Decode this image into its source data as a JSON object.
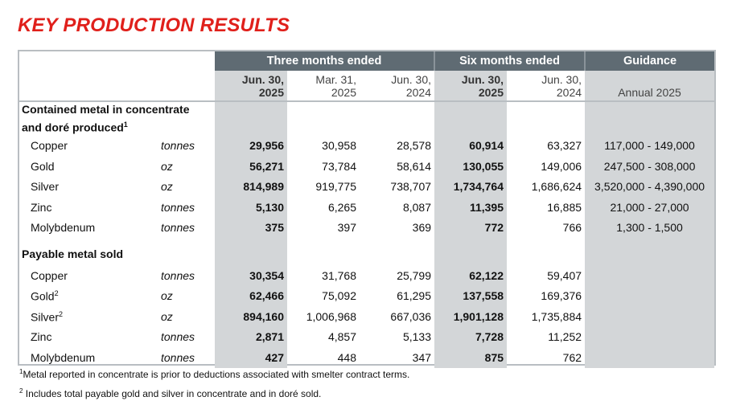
{
  "title": "KEY PRODUCTION RESULTS",
  "header": {
    "three_months": "Three months ended",
    "six_months": "Six months ended",
    "guidance": "Guidance"
  },
  "columns": [
    {
      "line1": "Jun. 30,",
      "line2": "2025"
    },
    {
      "line1": "Mar. 31,",
      "line2": "2025"
    },
    {
      "line1": "Jun. 30,",
      "line2": "2024"
    },
    {
      "line1": "Jun. 30,",
      "line2": "2025"
    },
    {
      "line1": "Jun. 30,",
      "line2": "2024"
    },
    {
      "line1": "",
      "line2": "Annual 2025"
    }
  ],
  "sections": [
    {
      "title_line1": "Contained metal in concentrate",
      "title_line2": "and doré produced",
      "footnote": "1",
      "rows": [
        {
          "metal": "Copper",
          "sup": "",
          "unit": "tonnes",
          "values": [
            "29,956",
            "30,958",
            "28,578",
            "60,914",
            "63,327",
            "117,000 - 149,000"
          ]
        },
        {
          "metal": "Gold",
          "sup": "",
          "unit": "oz",
          "values": [
            "56,271",
            "73,784",
            "58,614",
            "130,055",
            "149,006",
            "247,500 - 308,000"
          ]
        },
        {
          "metal": "Silver",
          "sup": "",
          "unit": "oz",
          "values": [
            "814,989",
            "919,775",
            "738,707",
            "1,734,764",
            "1,686,624",
            "3,520,000 - 4,390,000"
          ]
        },
        {
          "metal": "Zinc",
          "sup": "",
          "unit": "tonnes",
          "values": [
            "5,130",
            "6,265",
            "8,087",
            "11,395",
            "16,885",
            "21,000 - 27,000"
          ]
        },
        {
          "metal": "Molybdenum",
          "sup": "",
          "unit": "tonnes",
          "values": [
            "375",
            "397",
            "369",
            "772",
            "766",
            "1,300 - 1,500"
          ]
        }
      ]
    },
    {
      "title_line1": "Payable metal sold",
      "title_line2": "",
      "footnote": "",
      "rows": [
        {
          "metal": "Copper",
          "sup": "",
          "unit": "tonnes",
          "values": [
            "30,354",
            "31,768",
            "25,799",
            "62,122",
            "59,407",
            ""
          ]
        },
        {
          "metal": "Gold",
          "sup": "2",
          "unit": "oz",
          "values": [
            "62,466",
            "75,092",
            "61,295",
            "137,558",
            "169,376",
            ""
          ]
        },
        {
          "metal": "Silver",
          "sup": "2",
          "unit": "oz",
          "values": [
            "894,160",
            "1,006,968",
            "667,036",
            "1,901,128",
            "1,735,884",
            ""
          ]
        },
        {
          "metal": "Zinc",
          "sup": "",
          "unit": "tonnes",
          "values": [
            "2,871",
            "4,857",
            "5,133",
            "7,728",
            "11,252",
            ""
          ]
        },
        {
          "metal": "Molybdenum",
          "sup": "",
          "unit": "tonnes",
          "values": [
            "427",
            "448",
            "347",
            "875",
            "762",
            ""
          ]
        }
      ]
    }
  ],
  "footnotes": [
    {
      "mark": "1",
      "text": "Metal reported in concentrate is prior to deductions associated with smelter contract terms."
    },
    {
      "mark": "2",
      "text": "Includes total payable gold and silver in concentrate and in doré sold."
    }
  ],
  "colors": {
    "title": "#e0201b",
    "header_bg": "#5f6b73",
    "shade": "#d3d6d8"
  }
}
